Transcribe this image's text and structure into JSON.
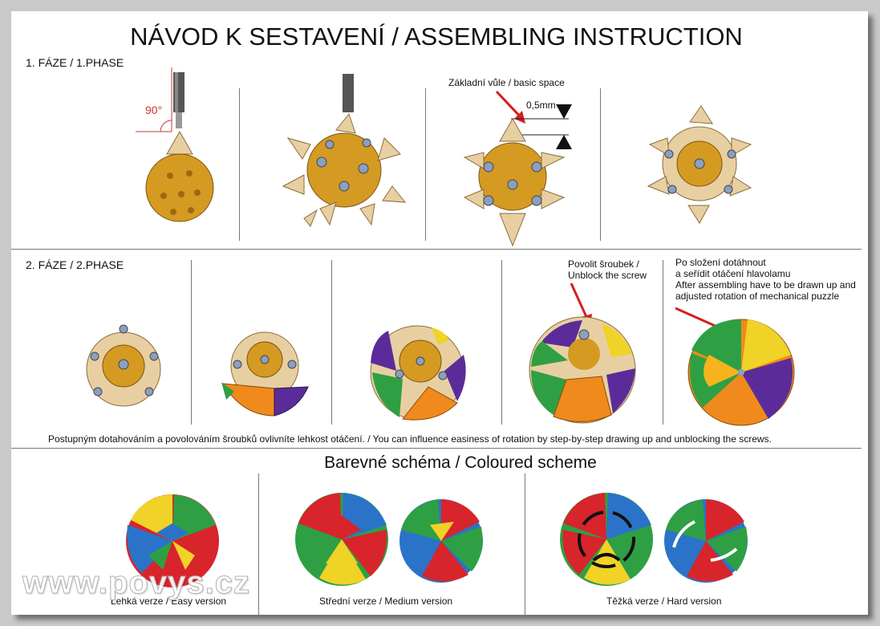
{
  "title": "NÁVOD K SESTAVENÍ / ASSEMBLING INSTRUCTION",
  "phase1": {
    "label": "1. FÁZE / 1.PHASE",
    "angle_label": "90°",
    "basic_space_label": "Základní vůle / basic space",
    "gap_label": "0,5mm"
  },
  "phase2": {
    "label": "2. FÁZE / 2.PHASE",
    "unblock_note": [
      "Povolit šroubek /",
      "Unblock the screw"
    ],
    "final_note": [
      "Po složení dotáhnout",
      "a seřídit otáčení hlavolamu",
      "After assembling have to be drawn up and",
      "adjusted rotation of  mechanical puzzle"
    ],
    "tip": "Postupným dotahováním a povolováním šroubků ovlivníte lehkost otáčení. / You can influence easiness of rotation by step-by-step drawing up and unblocking the screws."
  },
  "scheme": {
    "title": "Barevné schéma / Coloured scheme",
    "easy": "Lehká verze / Easy version",
    "medium": "Střední verze / Medium version",
    "hard": "Těžká verze / Hard version"
  },
  "watermark": "www.povys.cz",
  "colors": {
    "gold": "#d59a22",
    "tan": "#e8cfa2",
    "red": "#d8242b",
    "green": "#2ea043",
    "blue": "#2a73c9",
    "yellow": "#f1d227",
    "orange": "#f08a1c",
    "purple": "#5b2c99",
    "arrow": "#d51e1e"
  }
}
